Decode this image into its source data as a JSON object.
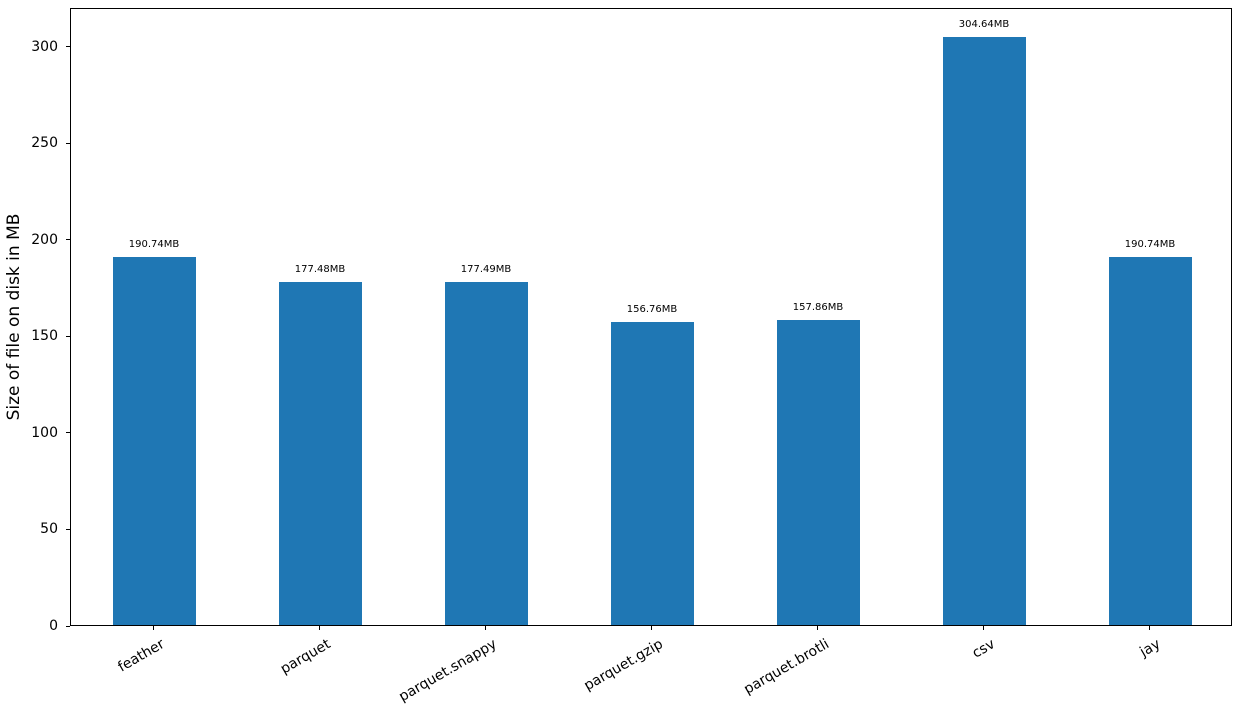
{
  "figure": {
    "background": "#ffffff",
    "bar_color": "#1f77b4",
    "axis_color": "#000000",
    "text_color": "#000000"
  },
  "chart_data": {
    "type": "bar",
    "title": "",
    "xlabel": "",
    "ylabel": "Size of file on disk in MB",
    "categories": [
      "feather",
      "parquet",
      "parquet.snappy",
      "parquet.gzip",
      "parquet.brotli",
      "csv",
      "jay"
    ],
    "values": [
      190.74,
      177.48,
      177.49,
      156.76,
      157.86,
      304.64,
      190.74
    ],
    "bar_labels": [
      "190.74MB",
      "177.48MB",
      "177.49MB",
      "156.76MB",
      "157.86MB",
      "304.64MB",
      "190.74MB"
    ],
    "y_ticks": [
      0,
      50,
      100,
      150,
      200,
      250,
      300
    ],
    "ylim": [
      0,
      320
    ],
    "x_tick_rotation_deg": 30,
    "grid": false,
    "legend": null,
    "bar_width_fraction": 0.5
  }
}
